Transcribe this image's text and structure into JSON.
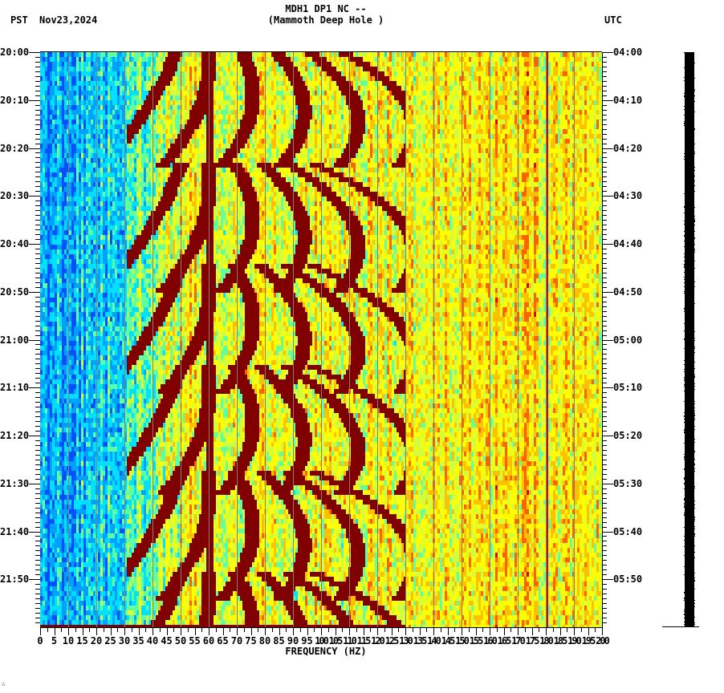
{
  "header": {
    "title_line1": "MDH1 DP1 NC --",
    "title_line2": "(Mammoth Deep Hole )",
    "left_timezone": "PST",
    "date": "Nov23,2024",
    "right_timezone": "UTC"
  },
  "footer_mark": "∴",
  "chart_data": {
    "type": "heatmap",
    "title": "MDH1 DP1 NC -- (Mammoth Deep Hole )",
    "subtitle": "Nov23,2024",
    "xlabel": "FREQUENCY (HZ)",
    "ylabel_left": "PST",
    "ylabel_right": "UTC",
    "xlim": [
      0,
      200
    ],
    "x_ticks": [
      "0",
      "5",
      "10",
      "15",
      "20",
      "25",
      "30",
      "35",
      "40",
      "45",
      "50",
      "55",
      "60",
      "65",
      "70",
      "75",
      "80",
      "85",
      "90",
      "95",
      "100",
      "105",
      "110",
      "115",
      "120",
      "125",
      "130",
      "135",
      "140",
      "145",
      "150",
      "155",
      "160",
      "165",
      "170",
      "175",
      "180",
      "185",
      "190",
      "195",
      "200"
    ],
    "y_ticks_left": [
      "20:00",
      "20:10",
      "20:20",
      "20:30",
      "20:40",
      "20:50",
      "21:00",
      "21:10",
      "21:20",
      "21:30",
      "21:40",
      "21:50"
    ],
    "y_ticks_right": [
      "04:00",
      "04:10",
      "04:20",
      "04:30",
      "04:40",
      "04:50",
      "05:00",
      "05:10",
      "05:20",
      "05:30",
      "05:40",
      "05:50"
    ],
    "time_range_pst": [
      "20:00",
      "22:00"
    ],
    "time_range_utc": [
      "04:00",
      "06:00"
    ],
    "grid": {
      "vertical_every_hz": 10,
      "color": "#808080"
    },
    "colormap": [
      "#0050ff",
      "#00a0ff",
      "#00e0ff",
      "#60ffa0",
      "#d0ff40",
      "#ffff00",
      "#ffc000",
      "#ff6000",
      "#e00000",
      "#800000"
    ],
    "persistent_lines_hz": [
      60,
      180
    ],
    "sweep_events_pst": [
      "20:00",
      "20:26",
      "20:47",
      "21:08",
      "21:30",
      "21:51"
    ],
    "notes": "Repeating downward-curving harmonic sweeps (~21 min period) from ~20 Hz to ~130 Hz; strong constant 60 Hz line; weak 180 Hz line; low energy (blue) below ~35 Hz, high (yellow/red) above."
  },
  "trace": {
    "label": "seismogram-trace",
    "color": "#000000"
  }
}
